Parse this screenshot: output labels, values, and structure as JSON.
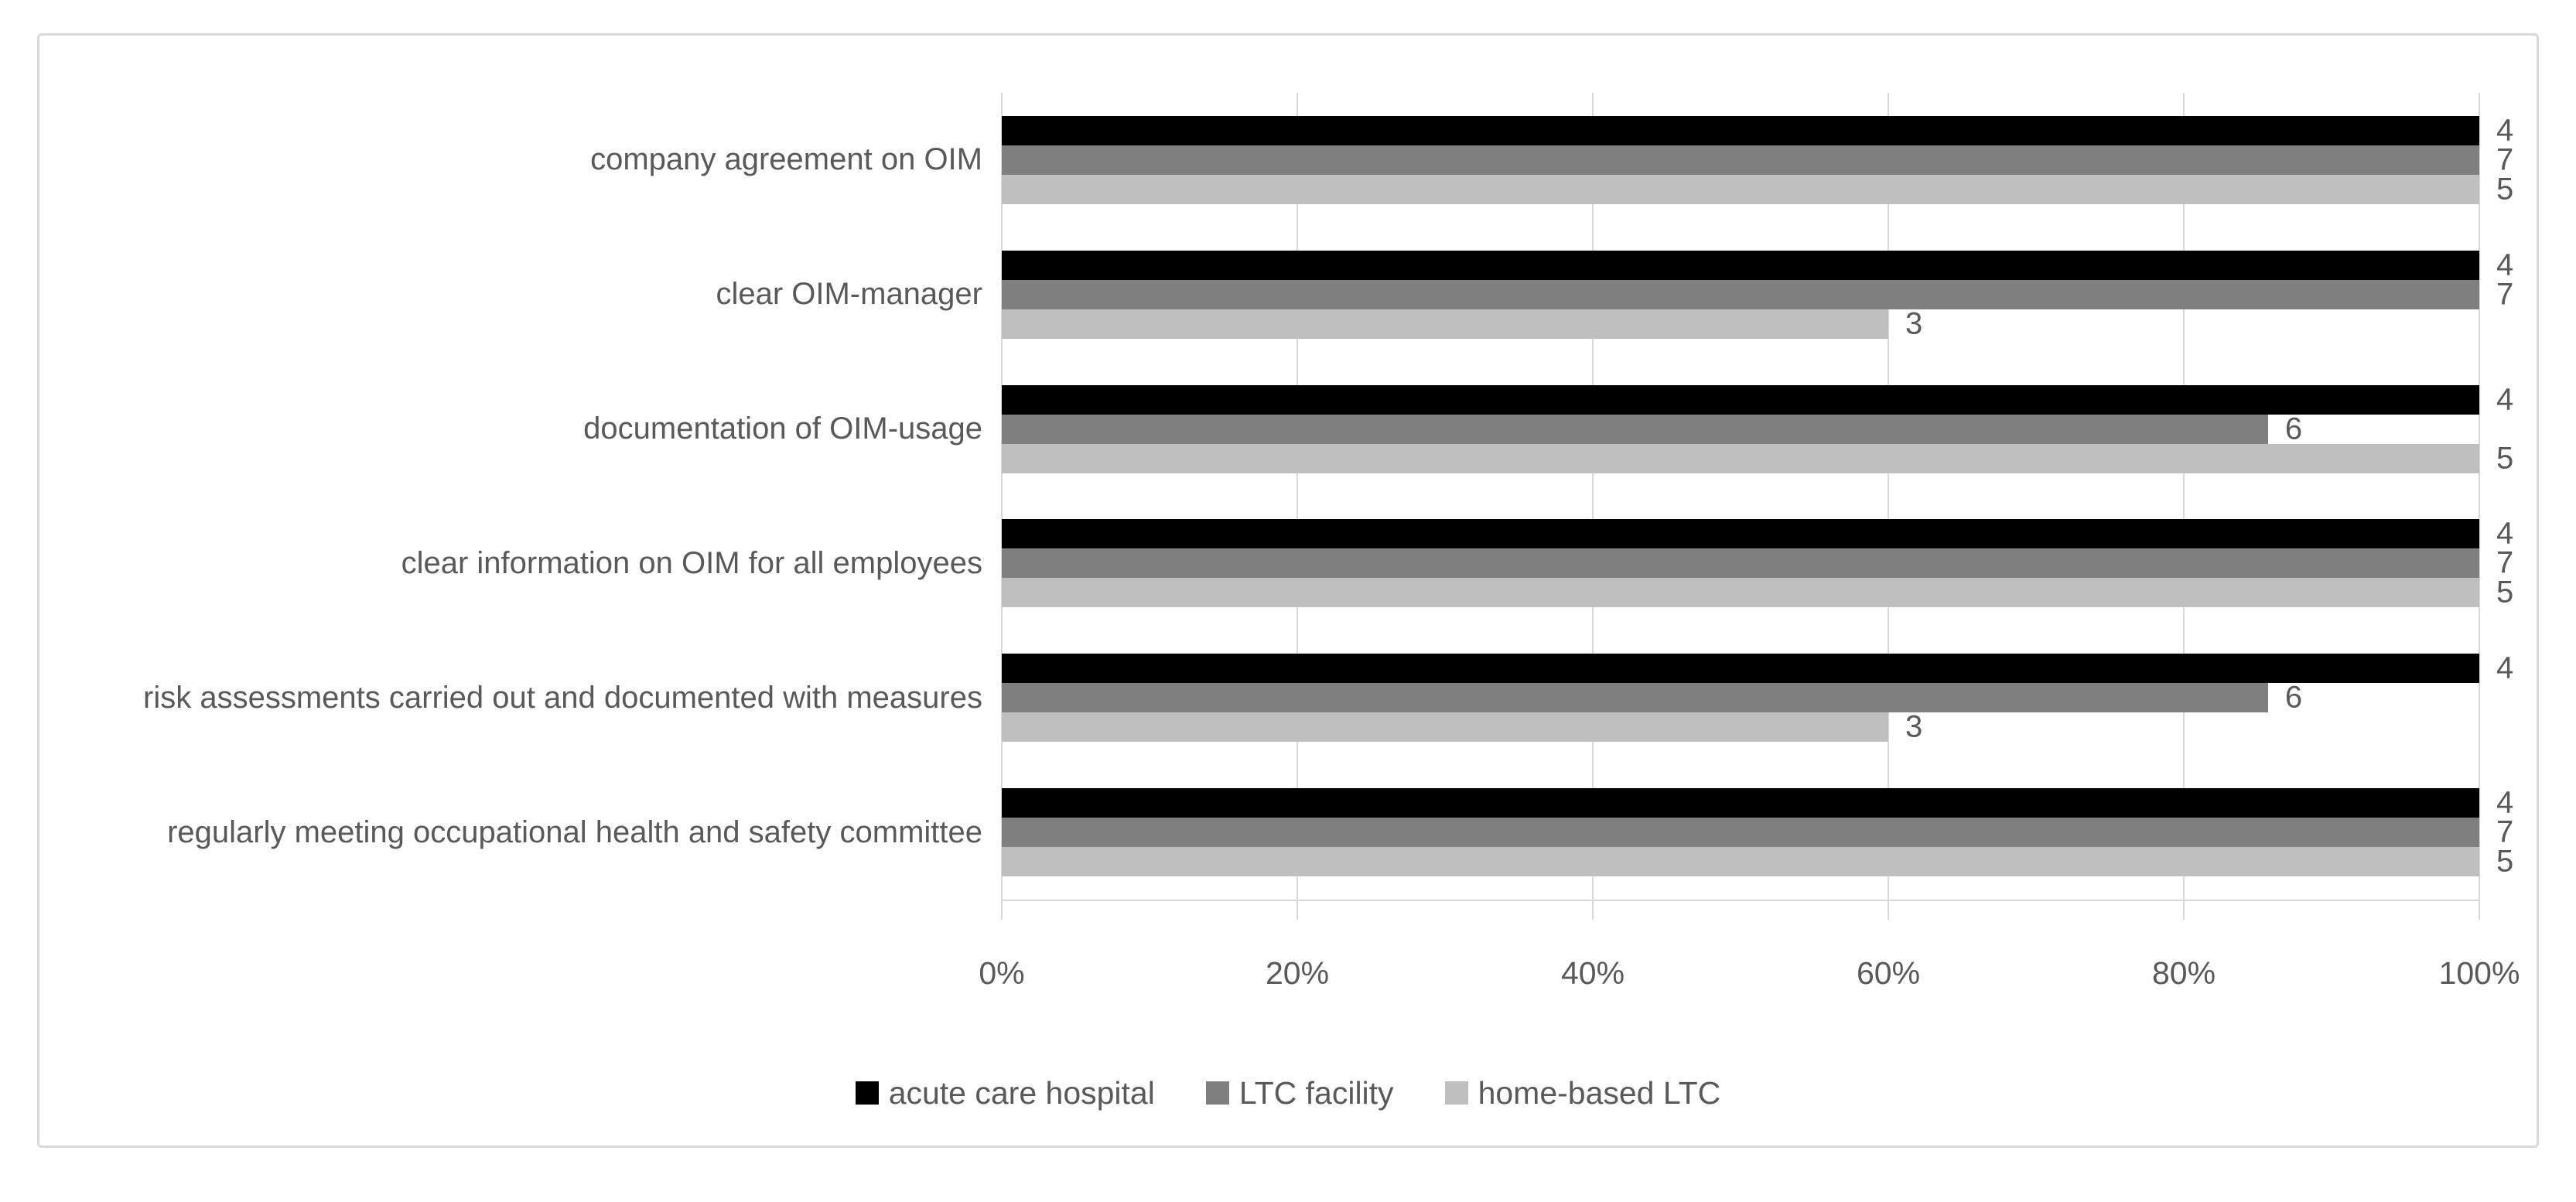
{
  "page": {
    "background": "#ffffff",
    "frame_border_color": "#d9d9d9"
  },
  "chart_data": {
    "type": "bar",
    "orientation": "horizontal",
    "title": "",
    "xlabel": "",
    "ylabel": "",
    "xlim": [
      0,
      100
    ],
    "grid": true,
    "legend_position": "bottom",
    "text_color": "#595959",
    "gridline_color": "#d9d9d9",
    "x_tick_values": [
      0,
      20,
      40,
      60,
      80,
      100
    ],
    "x_tick_labels": [
      "0%",
      "20%",
      "40%",
      "60%",
      "80%",
      "100%"
    ],
    "categories": [
      "company agreement on OIM",
      "clear OIM-manager",
      "documentation of OIM-usage",
      "clear information on OIM for all employees",
      "risk assessments carried out and documented with measures",
      "regularly meeting occupational health and safety committee"
    ],
    "series": [
      {
        "name": "acute care hospital",
        "key": "acute-care-hospital",
        "color": "#000000",
        "values_pct": [
          100,
          100,
          100,
          100,
          100,
          100
        ],
        "data_labels": [
          "4",
          "4",
          "4",
          "4",
          "4",
          "4"
        ]
      },
      {
        "name": "LTC facility",
        "key": "ltc-facility",
        "color": "#7f7f7f",
        "values_pct": [
          100,
          100,
          85.7,
          100,
          85.7,
          100
        ],
        "data_labels": [
          "7",
          "7",
          "6",
          "7",
          "6",
          "7"
        ]
      },
      {
        "name": "home-based LTC",
        "key": "home-based-ltc",
        "color": "#bfbfbf",
        "values_pct": [
          100,
          60,
          100,
          100,
          60,
          100
        ],
        "data_labels": [
          "5",
          "3",
          "5",
          "5",
          "3",
          "5"
        ]
      }
    ]
  }
}
